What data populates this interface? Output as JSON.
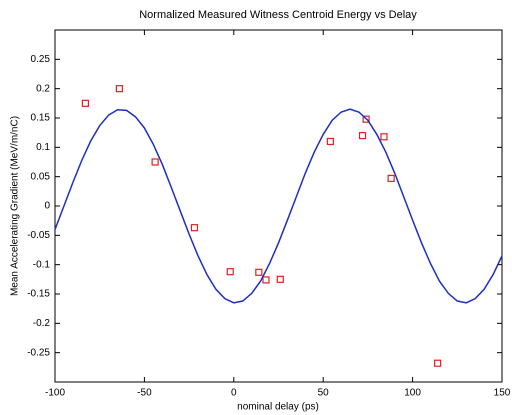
{
  "chart_data": {
    "type": "scatter",
    "title": "Normalized Measured Witness Centroid Energy vs Delay",
    "xlabel": "nominal delay (ps)",
    "ylabel": "Mean Accelerating Gradient (MeV/m/nC)",
    "xlim": [
      -100,
      150
    ],
    "ylim": [
      -0.3,
      0.3
    ],
    "xticks": [
      -100,
      -50,
      0,
      50,
      100,
      150
    ],
    "yticks": [
      -0.25,
      -0.2,
      -0.15,
      -0.1,
      -0.05,
      0,
      0.05,
      0.1,
      0.15,
      0.2,
      0.25
    ],
    "grid": false,
    "series": [
      {
        "mode": "markers",
        "color": "#e02020",
        "x": [
          -83,
          -64,
          -44,
          -22,
          -2,
          14,
          18,
          26,
          54,
          72,
          74,
          84,
          88,
          114
        ],
        "values": [
          0.175,
          0.2,
          0.075,
          -0.037,
          -0.112,
          -0.113,
          -0.126,
          -0.125,
          0.11,
          0.12,
          0.148,
          0.118,
          0.047,
          -0.268
        ]
      },
      {
        "mode": "line",
        "color": "#1c2fc4",
        "x": [
          -100,
          -95,
          -90,
          -85,
          -80,
          -75,
          -70,
          -65,
          -60,
          -55,
          -50,
          -45,
          -40,
          -35,
          -30,
          -25,
          -20,
          -15,
          -10,
          -5,
          0,
          5,
          10,
          15,
          20,
          25,
          30,
          35,
          40,
          45,
          50,
          55,
          60,
          65,
          70,
          75,
          80,
          85,
          90,
          95,
          100,
          105,
          110,
          115,
          120,
          125,
          130,
          135,
          140,
          145,
          150
        ],
        "values": [
          -0.04,
          0,
          0.04,
          0.078,
          0.111,
          0.137,
          0.155,
          0.164,
          0.163,
          0.152,
          0.133,
          0.105,
          0.071,
          0.032,
          -0.008,
          -0.048,
          -0.085,
          -0.117,
          -0.142,
          -0.158,
          -0.165,
          -0.162,
          -0.149,
          -0.128,
          -0.098,
          -0.063,
          -0.024,
          0.016,
          0.056,
          0.092,
          0.122,
          0.146,
          0.16,
          0.165,
          0.16,
          0.146,
          0.122,
          0.092,
          0.056,
          0.016,
          -0.024,
          -0.063,
          -0.098,
          -0.128,
          -0.149,
          -0.162,
          -0.165,
          -0.158,
          -0.142,
          -0.117,
          -0.085
        ]
      }
    ]
  }
}
